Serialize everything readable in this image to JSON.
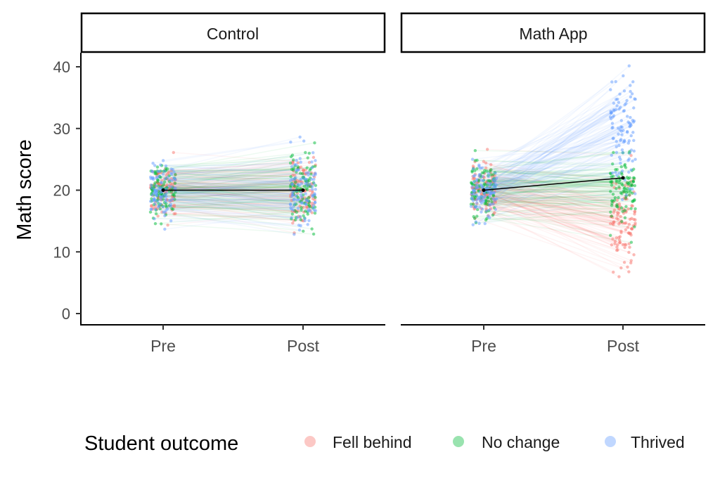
{
  "chart_data": {
    "type": "scatter",
    "subtype": "paired pre/post jittered points with connecting lines and mean line",
    "ylabel": "Math score",
    "xlabel": "",
    "ylim": [
      0,
      40
    ],
    "yticks": [
      0,
      10,
      20,
      30,
      40
    ],
    "categories": [
      "Pre",
      "Post"
    ],
    "facets": [
      {
        "label": "Control",
        "means": {
          "Pre": 20,
          "Post": 20
        },
        "groups": {
          "Fell behind": {
            "pre_mean": 20,
            "pre_sd": 2.2,
            "change_mean": 0,
            "change_sd": 2
          },
          "No change": {
            "pre_mean": 20,
            "pre_sd": 2.2,
            "change_mean": 0,
            "change_sd": 2
          },
          "Thrived": {
            "pre_mean": 20,
            "pre_sd": 2.2,
            "change_mean": 0,
            "change_sd": 2
          }
        }
      },
      {
        "label": "Math App",
        "means": {
          "Pre": 20,
          "Post": 22
        },
        "groups": {
          "Fell behind": {
            "pre_mean": 20,
            "pre_sd": 2.2,
            "change_mean": -5,
            "change_sd": 3
          },
          "No change": {
            "pre_mean": 20,
            "pre_sd": 2.2,
            "change_mean": 0,
            "change_sd": 2
          },
          "Thrived": {
            "pre_mean": 20,
            "pre_sd": 2.2,
            "change_mean": 10,
            "change_sd": 4.5
          }
        }
      }
    ],
    "legend": {
      "title": "Student outcome",
      "position": "bottom",
      "entries": [
        "Fell behind",
        "No change",
        "Thrived"
      ],
      "colors": [
        "#F8766D",
        "#00BA38",
        "#619CFF"
      ]
    },
    "grid": false
  }
}
